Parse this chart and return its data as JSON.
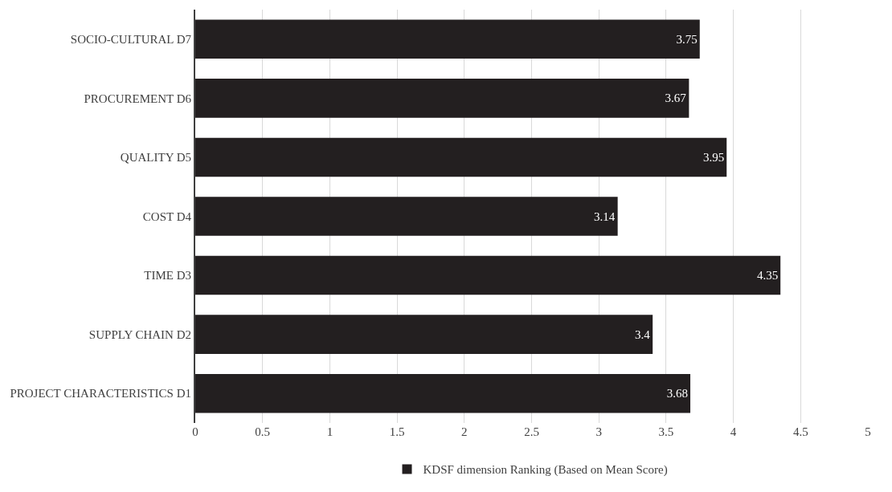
{
  "chart_data": {
    "type": "bar",
    "orientation": "horizontal",
    "categories": [
      "SOCIO-CULTURAL D7",
      "PROCUREMENT D6",
      "QUALITY D5",
      "COST D4",
      "TIME D3",
      "SUPPLY CHAIN D2",
      "PROJECT CHARACTERISTICS D1"
    ],
    "series": [
      {
        "name": "KDSF dimension Ranking (Based on Mean Score)",
        "color": "#231f20",
        "values": [
          3.75,
          3.67,
          3.95,
          3.14,
          4.35,
          3.4,
          3.68
        ]
      }
    ],
    "xlim": [
      0,
      5
    ],
    "xticks": [
      0,
      0.5,
      1,
      1.5,
      2,
      2.5,
      3,
      3.5,
      4,
      4.5,
      5
    ],
    "grid": "x",
    "legend": "bottom",
    "data_labels": true
  }
}
